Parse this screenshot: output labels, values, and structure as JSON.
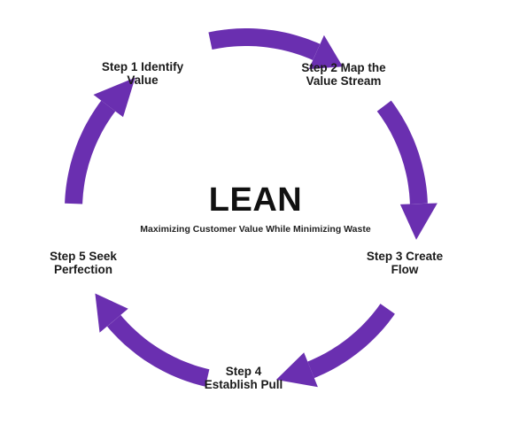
{
  "title": "LEAN",
  "subtitle": "Maximizing Customer Value While Minimizing Waste",
  "steps": [
    {
      "line1": "Step 1 Identify",
      "line2": "Value"
    },
    {
      "line1": "Step 2 Map the",
      "line2": "Value Stream"
    },
    {
      "line1": "Step 3 Create",
      "line2": "Flow"
    },
    {
      "line1": "Step 4",
      "line2": "Establish Pull"
    },
    {
      "line1": "Step 5 Seek",
      "line2": "Perfection"
    }
  ],
  "colors": {
    "arrow": "#6a2fb0",
    "text": "#1a1a1a"
  }
}
